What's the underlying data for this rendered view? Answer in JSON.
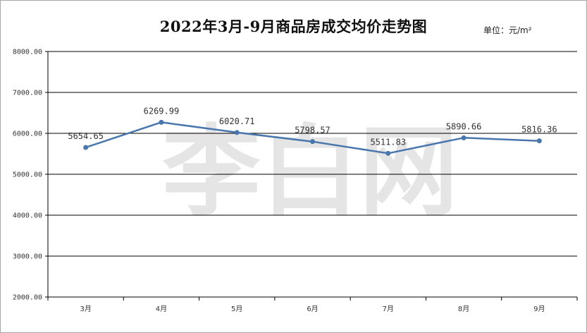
{
  "chart_data": {
    "type": "line",
    "title": "2022年3月-9月商品房成交均价走势图",
    "unit_label": "单位：元/m²",
    "categories": [
      "3月",
      "4月",
      "5月",
      "6月",
      "7月",
      "8月",
      "9月"
    ],
    "series": [
      {
        "values": [
          5654.65,
          6269.99,
          6020.71,
          5798.57,
          5511.83,
          5890.66,
          5816.36
        ]
      }
    ],
    "data_labels": [
      "5654.65",
      "6269.99",
      "6020.71",
      "5798.57",
      "5511.83",
      "5890.66",
      "5816.36"
    ],
    "y_ticks": [
      2000,
      3000,
      4000,
      5000,
      6000,
      7000,
      8000
    ],
    "y_tick_labels": [
      "2000.00",
      "3000.00",
      "4000.00",
      "5000.00",
      "6000.00",
      "7000.00",
      "8000.00"
    ],
    "ylim": [
      2000,
      8000
    ],
    "grid": true,
    "legend": "none",
    "line_color": "#4a76ae",
    "grid_color": "#000000",
    "watermark": "李白网"
  }
}
